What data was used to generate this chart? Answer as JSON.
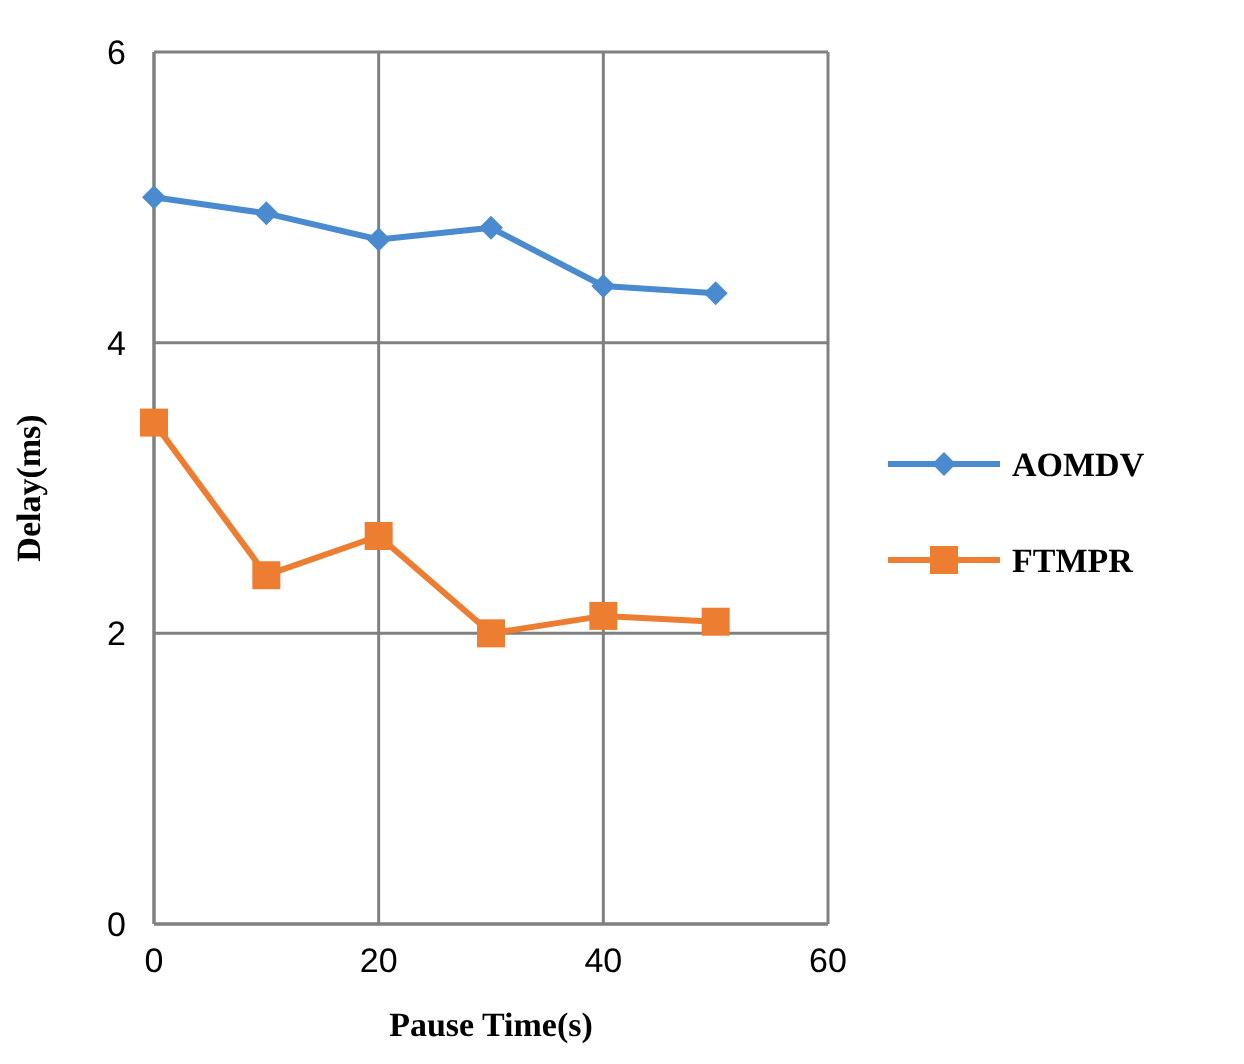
{
  "chart_data": {
    "type": "line",
    "xlabel": "Pause Time(s)",
    "ylabel": "Delay(ms)",
    "x": [
      0,
      10,
      20,
      30,
      40,
      50
    ],
    "xlim": [
      0,
      60
    ],
    "xticks": [
      0,
      20,
      40,
      60
    ],
    "ylim": [
      0,
      6
    ],
    "yticks": [
      0,
      2,
      4,
      6
    ],
    "grid": true,
    "legend": "right",
    "series": [
      {
        "name": "AOMDV",
        "color": "#4a8bd0",
        "values": [
          5.0,
          4.89,
          4.71,
          4.79,
          4.39,
          4.34
        ],
        "marker": "diamond"
      },
      {
        "name": "FTMPR",
        "color": "#ed7d31",
        "values": [
          3.45,
          2.4,
          2.67,
          2.0,
          2.12,
          2.08
        ],
        "marker": "square"
      }
    ]
  }
}
